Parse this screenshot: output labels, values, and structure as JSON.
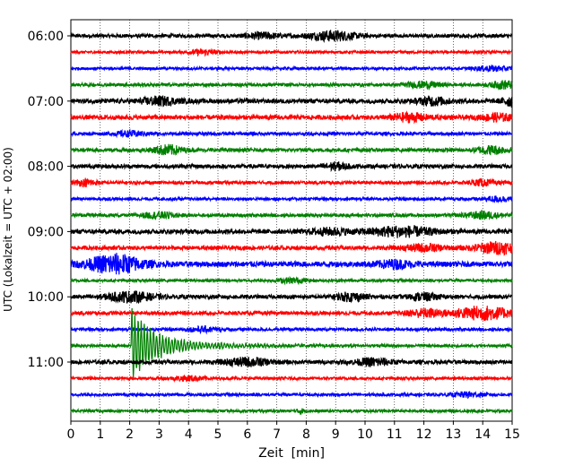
{
  "chart_data": {
    "type": "line",
    "title": "",
    "xlabel": "Zeit  [min]",
    "ylabel": "UTC (Lokalzeit = UTC + 02:00)",
    "xlim": [
      0,
      15
    ],
    "x_ticks": [
      0,
      1,
      2,
      3,
      4,
      5,
      6,
      7,
      8,
      9,
      10,
      11,
      12,
      13,
      14,
      15
    ],
    "x_tick_labels": [
      "0",
      "1",
      "2",
      "3",
      "4",
      "5",
      "6",
      "7",
      "8",
      "9",
      "10",
      "11",
      "12",
      "13",
      "14",
      "15"
    ],
    "y_tick_labels": [
      "06:00",
      "07:00",
      "08:00",
      "09:00",
      "10:00",
      "11:00"
    ],
    "y_tick_rows": [
      0,
      4,
      8,
      12,
      16,
      20
    ],
    "grid": "vertical dotted at every minute",
    "trace_interval_min": 15,
    "start_time_utc": "06:00",
    "trace_count": 24,
    "trace_colors": [
      "#000000",
      "#ff0000",
      "#0000ff",
      "#008000"
    ],
    "traces": [
      {
        "row": 0,
        "base_amp": 2,
        "bursts": [
          {
            "t": 8.9,
            "amp": 5,
            "width": 0.8
          },
          {
            "t": 6.5,
            "amp": 3,
            "width": 0.6
          }
        ]
      },
      {
        "row": 1,
        "base_amp": 1.5,
        "bursts": [
          {
            "t": 4.5,
            "amp": 2.5,
            "width": 0.5
          }
        ]
      },
      {
        "row": 2,
        "base_amp": 1.5,
        "bursts": [
          {
            "t": 14.3,
            "amp": 2.5,
            "width": 0.6
          }
        ]
      },
      {
        "row": 3,
        "base_amp": 1.8,
        "bursts": [
          {
            "t": 12,
            "amp": 3,
            "width": 0.6
          },
          {
            "t": 14.7,
            "amp": 4,
            "width": 0.4
          }
        ]
      },
      {
        "row": 4,
        "base_amp": 2.5,
        "bursts": [
          {
            "t": 3,
            "amp": 4,
            "width": 0.6
          },
          {
            "t": 12.3,
            "amp": 4,
            "width": 0.5
          },
          {
            "t": 15,
            "amp": 5,
            "width": 0.3
          }
        ]
      },
      {
        "row": 5,
        "base_amp": 2.5,
        "bursts": [
          {
            "t": 11.5,
            "amp": 4,
            "width": 0.6
          },
          {
            "t": 14.5,
            "amp": 3.5,
            "width": 0.5
          }
        ]
      },
      {
        "row": 6,
        "base_amp": 1.8,
        "bursts": [
          {
            "t": 2,
            "amp": 2.5,
            "width": 0.5
          }
        ]
      },
      {
        "row": 7,
        "base_amp": 2,
        "bursts": [
          {
            "t": 3.3,
            "amp": 5,
            "width": 0.5
          },
          {
            "t": 14.3,
            "amp": 4,
            "width": 0.5
          }
        ]
      },
      {
        "row": 8,
        "base_amp": 2.2,
        "bursts": [
          {
            "t": 9,
            "amp": 3.5,
            "width": 0.4
          }
        ]
      },
      {
        "row": 9,
        "base_amp": 1.8,
        "bursts": [
          {
            "t": 0.5,
            "amp": 3,
            "width": 0.4
          },
          {
            "t": 14,
            "amp": 3,
            "width": 0.4
          }
        ]
      },
      {
        "row": 10,
        "base_amp": 1.6,
        "bursts": [
          {
            "t": 14.5,
            "amp": 2.5,
            "width": 0.5
          }
        ]
      },
      {
        "row": 11,
        "base_amp": 1.8,
        "bursts": [
          {
            "t": 3,
            "amp": 3,
            "width": 0.6
          },
          {
            "t": 14,
            "amp": 3.5,
            "width": 0.6
          }
        ]
      },
      {
        "row": 12,
        "base_amp": 2.5,
        "bursts": [
          {
            "t": 11.2,
            "amp": 5,
            "width": 1.1
          },
          {
            "t": 8.8,
            "amp": 3,
            "width": 0.7
          }
        ]
      },
      {
        "row": 13,
        "base_amp": 2.2,
        "bursts": [
          {
            "t": 14.5,
            "amp": 6,
            "width": 0.8
          },
          {
            "t": 12,
            "amp": 3.5,
            "width": 0.7
          }
        ]
      },
      {
        "row": 14,
        "base_amp": 3,
        "bursts": [
          {
            "t": 1.5,
            "amp": 10,
            "width": 0.9
          },
          {
            "t": 11,
            "amp": 3.5,
            "width": 0.6
          }
        ]
      },
      {
        "row": 15,
        "base_amp": 1.5,
        "bursts": [
          {
            "t": 7.5,
            "amp": 2.5,
            "width": 0.5
          }
        ]
      },
      {
        "row": 16,
        "base_amp": 2.2,
        "bursts": [
          {
            "t": 2,
            "amp": 5,
            "width": 0.8
          },
          {
            "t": 9.5,
            "amp": 4,
            "width": 0.5
          },
          {
            "t": 12,
            "amp": 3.5,
            "width": 0.5
          }
        ]
      },
      {
        "row": 17,
        "base_amp": 2,
        "bursts": [
          {
            "t": 14,
            "amp": 7,
            "width": 1.0
          },
          {
            "t": 12,
            "amp": 4,
            "width": 0.6
          }
        ]
      },
      {
        "row": 18,
        "base_amp": 1.6,
        "bursts": [
          {
            "t": 4.5,
            "amp": 2.5,
            "width": 0.5
          }
        ]
      },
      {
        "row": 19,
        "base_amp": 1.5,
        "bursts": [],
        "quake": {
          "t": 2.05,
          "amp": 38,
          "decay": 1.1
        }
      },
      {
        "row": 20,
        "base_amp": 2.2,
        "bursts": [
          {
            "t": 6,
            "amp": 4,
            "width": 0.8
          },
          {
            "t": 10.3,
            "amp": 4,
            "width": 0.6
          }
        ]
      },
      {
        "row": 21,
        "base_amp": 1.6,
        "bursts": [
          {
            "t": 4,
            "amp": 2.5,
            "width": 0.5
          }
        ]
      },
      {
        "row": 22,
        "base_amp": 1.6,
        "bursts": [
          {
            "t": 13.5,
            "amp": 2.5,
            "width": 0.5
          }
        ]
      },
      {
        "row": 23,
        "base_amp": 1.5,
        "bursts": [
          {
            "t": 7.8,
            "amp": 3,
            "width": 0.1
          }
        ]
      }
    ]
  }
}
